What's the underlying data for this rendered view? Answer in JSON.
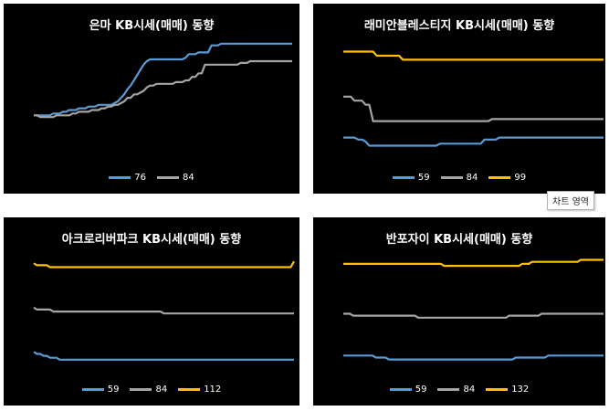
{
  "chart_data": [
    {
      "type": "line",
      "title": "은마 KB시세(매매) 동향",
      "series": [
        {
          "name": "76",
          "color": "#5b9bd5",
          "values": [
            100,
            100,
            100,
            100,
            100,
            100,
            101,
            101,
            101,
            102,
            102,
            103,
            103,
            103,
            104,
            104,
            104,
            105,
            105,
            105,
            106,
            106,
            106,
            106,
            106,
            107,
            108,
            110,
            112,
            115,
            117,
            120,
            123,
            126,
            129,
            131,
            132,
            132,
            132,
            132,
            132,
            132,
            132,
            132,
            132,
            132,
            132,
            133,
            135,
            135,
            135,
            136,
            136,
            136,
            136,
            140,
            140,
            140,
            141,
            141,
            141,
            141,
            141,
            141,
            141,
            141,
            141,
            141,
            141,
            141,
            141,
            141,
            141,
            141,
            141,
            141,
            141,
            141,
            141,
            141,
            141
          ]
        },
        {
          "name": "84",
          "color": "#a5a5a5",
          "values": [
            100,
            100,
            99,
            99,
            99,
            99,
            99,
            100,
            100,
            100,
            100,
            100,
            101,
            101,
            102,
            102,
            102,
            102,
            103,
            103,
            103,
            104,
            104,
            105,
            105,
            106,
            106,
            107,
            108,
            110,
            110,
            112,
            112,
            113,
            114,
            116,
            117,
            117,
            118,
            118,
            118,
            118,
            118,
            118,
            119,
            119,
            119,
            120,
            120,
            122,
            122,
            124,
            124,
            129,
            129,
            129,
            129,
            129,
            129,
            129,
            129,
            129,
            129,
            129,
            130,
            130,
            130,
            131,
            131,
            131,
            131,
            131,
            131,
            131,
            131,
            131,
            131,
            131,
            131,
            131,
            131
          ]
        }
      ],
      "legend": "bottom"
    },
    {
      "type": "line",
      "title": "래미안블레스티지 KB시세(매매) 동향",
      "series": [
        {
          "name": "59",
          "color": "#5b9bd5",
          "values": [
            120,
            120,
            120,
            120,
            119,
            119,
            118,
            116,
            116,
            116,
            116,
            116,
            116,
            116,
            116,
            116,
            116,
            116,
            116,
            116,
            116,
            116,
            116,
            116,
            116,
            116,
            117,
            117,
            117,
            117,
            117,
            117,
            117,
            117,
            117,
            117,
            117,
            117,
            119,
            119,
            119,
            119,
            120,
            120,
            120,
            120,
            120,
            120,
            120,
            120,
            120,
            120,
            120,
            120,
            120,
            120,
            120,
            120,
            120,
            120,
            120,
            120,
            120,
            120,
            120,
            120,
            120,
            120,
            120,
            120,
            120
          ]
        },
        {
          "name": "84",
          "color": "#a5a5a5",
          "values": [
            140,
            140,
            140,
            138,
            138,
            138,
            136,
            136,
            128,
            128,
            128,
            128,
            128,
            128,
            128,
            128,
            128,
            128,
            128,
            128,
            128,
            128,
            128,
            128,
            128,
            128,
            128,
            128,
            128,
            128,
            128,
            128,
            128,
            128,
            128,
            128,
            128,
            128,
            128,
            128,
            129,
            129,
            129,
            129,
            129,
            129,
            129,
            129,
            129,
            129,
            129,
            129,
            129,
            129,
            129,
            129,
            129,
            129,
            129,
            129,
            129,
            129,
            129,
            129,
            129,
            129,
            129,
            129,
            129,
            129,
            129
          ]
        },
        {
          "name": "99",
          "color": "#ffc000",
          "values": [
            162,
            162,
            162,
            162,
            162,
            162,
            162,
            162,
            162,
            160,
            160,
            160,
            160,
            160,
            160,
            160,
            158,
            158,
            158,
            158,
            158,
            158,
            158,
            158,
            158,
            158,
            158,
            158,
            158,
            158,
            158,
            158,
            158,
            158,
            158,
            158,
            158,
            158,
            158,
            158,
            158,
            158,
            158,
            158,
            158,
            158,
            158,
            158,
            158,
            158,
            158,
            158,
            158,
            158,
            158,
            158,
            158,
            158,
            158,
            158,
            158,
            158,
            158,
            158,
            158,
            158,
            158,
            158,
            158,
            158,
            158
          ]
        }
      ],
      "legend": "bottom"
    },
    {
      "type": "line",
      "title": "아크로리버파크 KB시세(매매) 동향",
      "series": [
        {
          "name": "59",
          "color": "#5b9bd5",
          "values": [
            106,
            105,
            105,
            104,
            104,
            103,
            103,
            103,
            102,
            102,
            102,
            102,
            102,
            102,
            102,
            102,
            102,
            102,
            102,
            102,
            102,
            102,
            102,
            102,
            102,
            102,
            102,
            102,
            102,
            102,
            102,
            102,
            102,
            102,
            102,
            102,
            102,
            102,
            102,
            102,
            102,
            102,
            102,
            102,
            102,
            102,
            102,
            102,
            102,
            102,
            102,
            102,
            102,
            102,
            102,
            102,
            102,
            102,
            102,
            102,
            102,
            102,
            102,
            102,
            102,
            102,
            102,
            102,
            102,
            102,
            102,
            102,
            102,
            102,
            102,
            102,
            102,
            102,
            102,
            102,
            102
          ]
        },
        {
          "name": "84",
          "color": "#a5a5a5",
          "values": [
            129,
            128,
            128,
            128,
            128,
            128,
            127,
            127,
            127,
            127,
            127,
            127,
            127,
            127,
            127,
            127,
            127,
            127,
            127,
            127,
            127,
            127,
            127,
            127,
            127,
            127,
            127,
            127,
            127,
            127,
            127,
            127,
            127,
            127,
            127,
            127,
            127,
            127,
            127,
            127,
            126,
            126,
            126,
            126,
            126,
            126,
            126,
            126,
            126,
            126,
            126,
            126,
            126,
            126,
            126,
            126,
            126,
            126,
            126,
            126,
            126,
            126,
            126,
            126,
            126,
            126,
            126,
            126,
            126,
            126,
            126,
            126,
            126,
            126,
            126,
            126,
            126,
            126,
            126,
            126,
            126
          ]
        },
        {
          "name": "112",
          "color": "#ffc000",
          "values": [
            152,
            151,
            151,
            151,
            151,
            150,
            150,
            150,
            150,
            150,
            150,
            150,
            150,
            150,
            150,
            150,
            150,
            150,
            150,
            150,
            150,
            150,
            150,
            150,
            150,
            150,
            150,
            150,
            150,
            150,
            150,
            150,
            150,
            150,
            150,
            150,
            150,
            150,
            150,
            150,
            150,
            150,
            150,
            150,
            150,
            150,
            150,
            150,
            150,
            150,
            150,
            150,
            150,
            150,
            150,
            150,
            150,
            150,
            150,
            150,
            150,
            150,
            150,
            150,
            150,
            150,
            150,
            150,
            150,
            150,
            150,
            150,
            150,
            150,
            150,
            150,
            150,
            150,
            150,
            150,
            153
          ]
        }
      ],
      "legend": "bottom"
    },
    {
      "type": "line",
      "title": "반포자이 KB시세(매매) 동향",
      "series": [
        {
          "name": "59",
          "color": "#5b9bd5",
          "values": [
            104,
            104,
            104,
            104,
            104,
            104,
            104,
            104,
            104,
            104,
            103,
            103,
            103,
            103,
            102,
            102,
            102,
            102,
            102,
            102,
            102,
            102,
            102,
            102,
            102,
            102,
            102,
            102,
            102,
            102,
            102,
            102,
            102,
            102,
            102,
            102,
            102,
            102,
            102,
            102,
            102,
            102,
            102,
            102,
            102,
            102,
            102,
            102,
            102,
            102,
            102,
            102,
            102,
            103,
            103,
            103,
            103,
            103,
            103,
            103,
            103,
            103,
            103,
            104,
            104,
            104,
            104,
            104,
            104,
            104,
            104,
            104,
            104,
            104,
            104,
            104,
            104,
            104,
            104,
            104,
            104
          ]
        },
        {
          "name": "84",
          "color": "#a5a5a5",
          "values": [
            125,
            125,
            125,
            124,
            124,
            124,
            124,
            124,
            124,
            124,
            124,
            124,
            124,
            124,
            124,
            124,
            124,
            124,
            124,
            124,
            124,
            124,
            124,
            123,
            123,
            123,
            123,
            123,
            123,
            123,
            123,
            123,
            123,
            123,
            123,
            123,
            123,
            123,
            123,
            123,
            123,
            123,
            123,
            123,
            123,
            123,
            123,
            123,
            123,
            123,
            123,
            124,
            124,
            124,
            124,
            124,
            124,
            124,
            124,
            124,
            124,
            125,
            125,
            125,
            125,
            125,
            125,
            125,
            125,
            125,
            125,
            125,
            125,
            125,
            125,
            125,
            125,
            125,
            125,
            125,
            125
          ]
        },
        {
          "name": "132",
          "color": "#ffc000",
          "values": [
            150,
            150,
            150,
            150,
            150,
            150,
            150,
            150,
            150,
            150,
            150,
            150,
            150,
            150,
            150,
            150,
            150,
            150,
            150,
            150,
            150,
            150,
            150,
            150,
            150,
            150,
            150,
            150,
            150,
            150,
            150,
            149,
            149,
            149,
            149,
            149,
            149,
            149,
            149,
            149,
            149,
            149,
            149,
            149,
            149,
            149,
            149,
            149,
            149,
            149,
            149,
            149,
            149,
            149,
            149,
            150,
            150,
            150,
            151,
            151,
            151,
            151,
            151,
            151,
            151,
            151,
            151,
            151,
            151,
            151,
            151,
            151,
            151,
            152,
            152,
            152,
            152,
            152,
            152,
            152,
            152
          ]
        }
      ],
      "legend": "bottom"
    }
  ],
  "tooltip": {
    "text": "차트 영역"
  }
}
